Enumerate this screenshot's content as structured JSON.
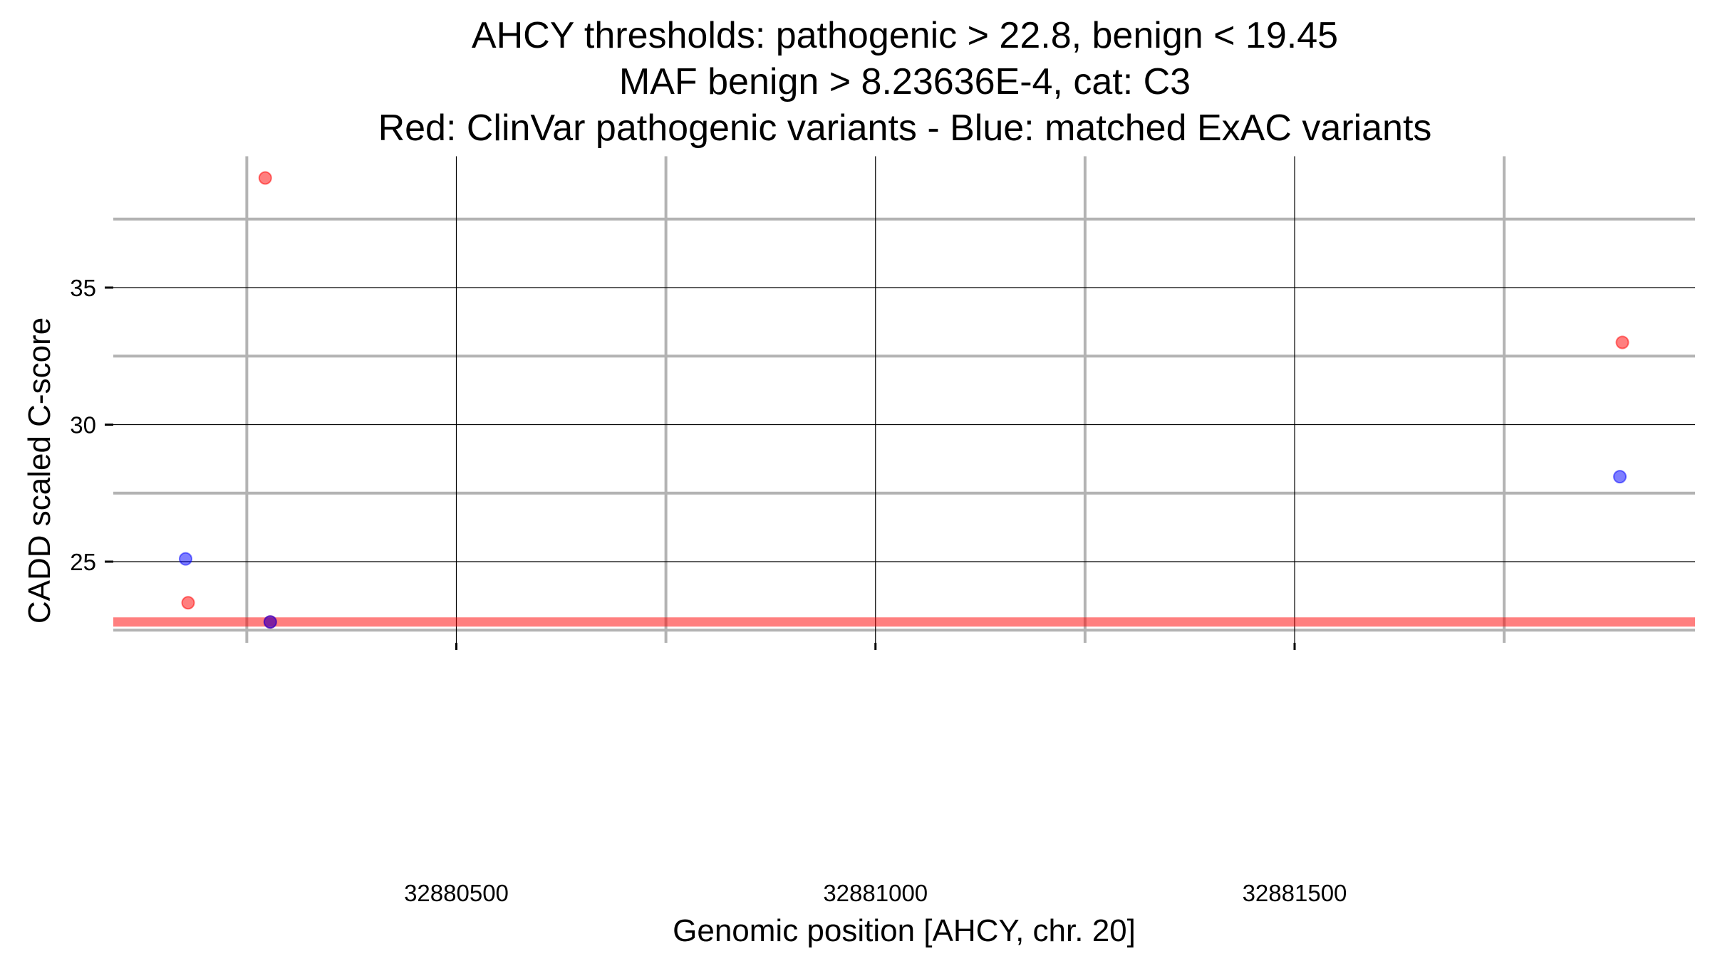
{
  "chart_data": {
    "type": "scatter",
    "title": [
      "AHCY thresholds: pathogenic > 22.8, benign < 19.45",
      "MAF benign > 8.23636E-4, cat: C3",
      "Red: ClinVar pathogenic variants - Blue: matched ExAC variants"
    ],
    "xlabel": "Genomic position [AHCY, chr. 20]",
    "ylabel": "CADD scaled C-score",
    "xlim": [
      32880091,
      32881978
    ],
    "ylim": [
      22.0,
      39.8
    ],
    "x_ticks": [
      32880500,
      32881000,
      32881500
    ],
    "x_tick_labels": [
      "32880500",
      "32881000",
      "32881500"
    ],
    "x_minor_grid": [
      32880250,
      32880750,
      32881250,
      32881750
    ],
    "y_ticks": [
      25,
      30,
      35
    ],
    "y_tick_labels": [
      "25",
      "30",
      "35"
    ],
    "y_minor_grid": [
      22.5,
      27.5,
      32.5,
      37.5
    ],
    "threshold_line": {
      "y": 22.8,
      "color": "#ff0000",
      "label": "pathogenic threshold"
    },
    "grid": true,
    "series": [
      {
        "name": "ClinVar pathogenic variants",
        "color": "#ff0000",
        "points": [
          [
            32880272,
            39.0
          ],
          [
            32880180,
            23.5
          ],
          [
            32880278,
            22.8
          ],
          [
            32881891,
            33.0
          ]
        ]
      },
      {
        "name": "matched ExAC variants",
        "color": "#0000ff",
        "points": [
          [
            32880177,
            25.1
          ],
          [
            32880278,
            22.8
          ],
          [
            32881888,
            28.1
          ]
        ]
      }
    ]
  }
}
